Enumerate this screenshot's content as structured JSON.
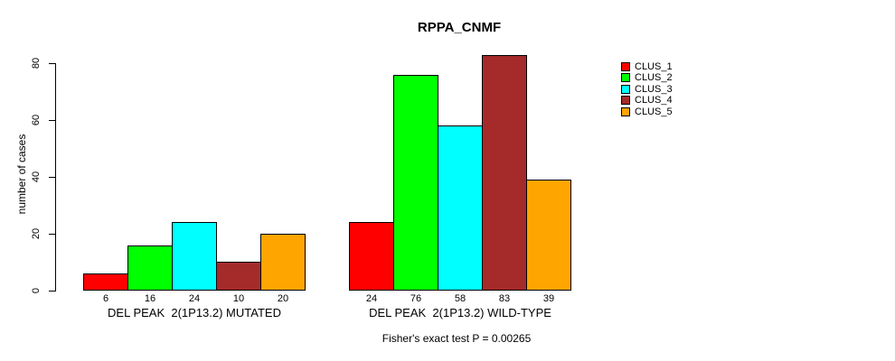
{
  "chart_data": {
    "type": "bar",
    "title": "RPPA_CNMF",
    "xlabel": "",
    "ylabel": "number of cases",
    "ylim": [
      0,
      80
    ],
    "yticks": [
      0,
      20,
      40,
      60,
      80
    ],
    "grid": false,
    "legend_position": "right",
    "bar_border_color": "#000000",
    "categories": [
      "DEL PEAK  2(1P13.2) MUTATED",
      "DEL PEAK  2(1P13.2) WILD-TYPE"
    ],
    "series": [
      {
        "name": "CLUS_1",
        "color": "#ff0000",
        "values": [
          6,
          24
        ]
      },
      {
        "name": "CLUS_2",
        "color": "#00ff00",
        "values": [
          16,
          76
        ]
      },
      {
        "name": "CLUS_3",
        "color": "#00ffff",
        "values": [
          24,
          58
        ]
      },
      {
        "name": "CLUS_4",
        "color": "#a52a2a",
        "values": [
          10,
          83
        ]
      },
      {
        "name": "CLUS_5",
        "color": "#ffa500",
        "values": [
          20,
          39
        ]
      }
    ],
    "bar_value_labels_shown": true,
    "annotation": "Fisher's exact test P = 0.00265"
  }
}
